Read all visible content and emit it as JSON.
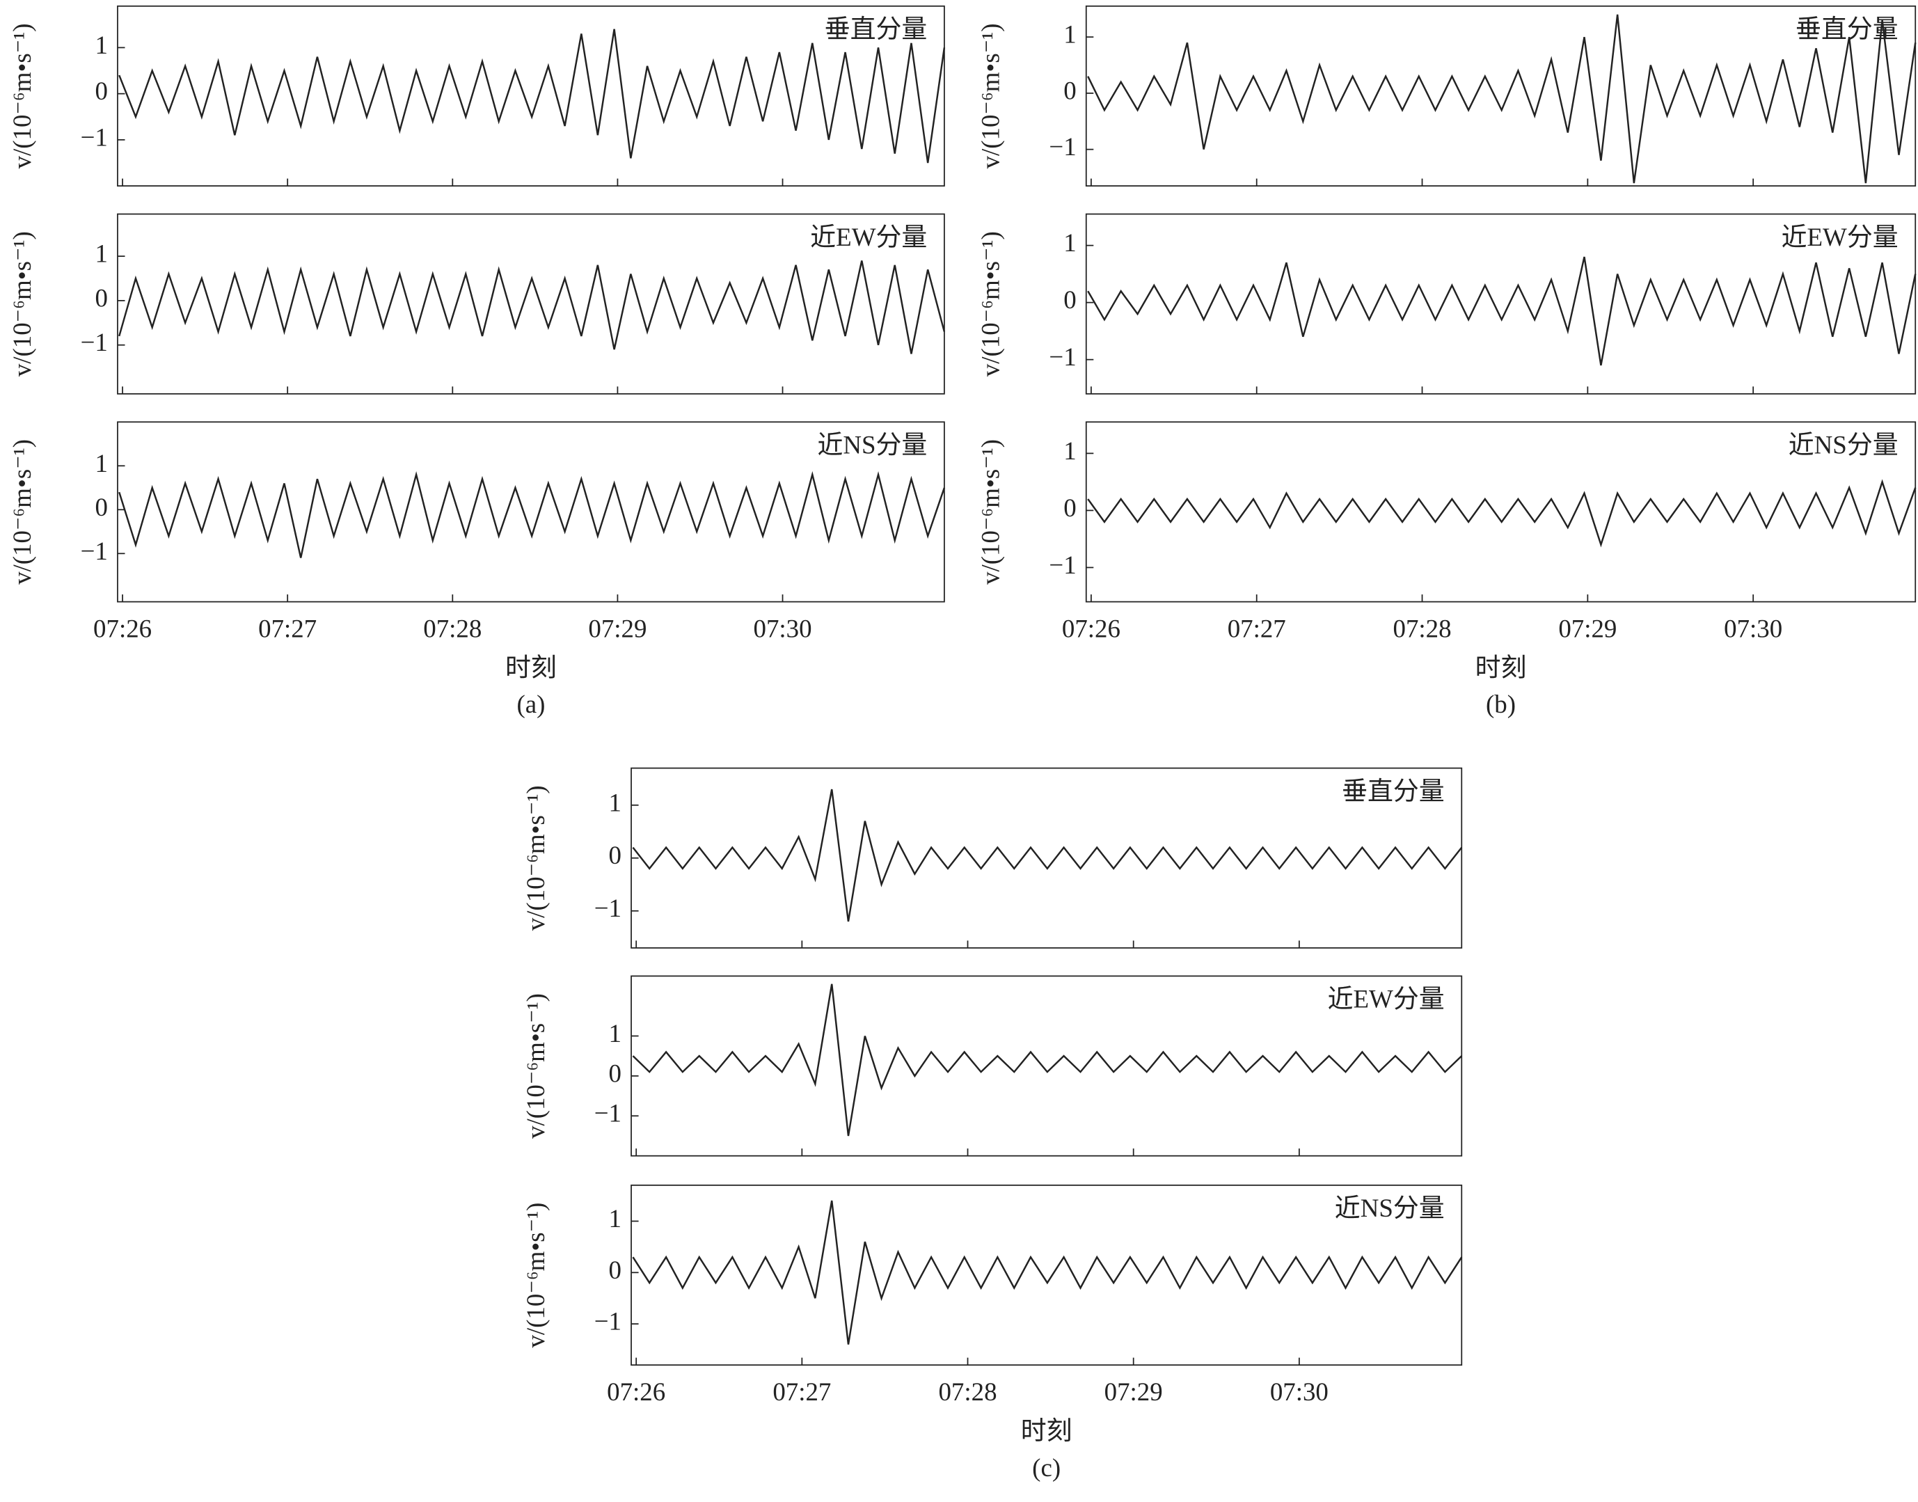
{
  "chart_data": [
    {
      "type": "line",
      "caption": "(a)",
      "xlabel": "时刻",
      "xlim": [
        -0.03,
        4.98
      ],
      "xticks": [
        {
          "value": 0,
          "label": "07:26"
        },
        {
          "value": 1,
          "label": "07:27"
        },
        {
          "value": 2,
          "label": "07:28"
        },
        {
          "value": 3,
          "label": "07:29"
        },
        {
          "value": 4,
          "label": "07:30"
        }
      ],
      "x": [
        -0.02,
        0.08,
        0.18,
        0.28,
        0.38,
        0.48,
        0.58,
        0.68,
        0.78,
        0.88,
        0.98,
        1.08,
        1.18,
        1.28,
        1.38,
        1.48,
        1.58,
        1.68,
        1.78,
        1.88,
        1.98,
        2.08,
        2.18,
        2.28,
        2.38,
        2.48,
        2.58,
        2.68,
        2.78,
        2.88,
        2.98,
        3.08,
        3.18,
        3.28,
        3.38,
        3.48,
        3.58,
        3.68,
        3.78,
        3.88,
        3.98,
        4.08,
        4.18,
        4.28,
        4.38,
        4.48,
        4.58,
        4.68,
        4.78,
        4.88,
        4.98
      ],
      "panels": [
        {
          "title": "垂直分量",
          "ylabel": "v/(10⁻⁶m•s⁻¹)",
          "ylim": [
            -2.0,
            1.9
          ],
          "yticks": [
            {
              "value": -1,
              "label": "−1"
            },
            0,
            1
          ],
          "color": "#222222",
          "values": [
            0.4,
            -0.5,
            0.5,
            -0.4,
            0.6,
            -0.5,
            0.7,
            -0.9,
            0.6,
            -0.6,
            0.5,
            -0.7,
            0.8,
            -0.6,
            0.7,
            -0.5,
            0.6,
            -0.8,
            0.5,
            -0.6,
            0.6,
            -0.5,
            0.7,
            -0.6,
            0.5,
            -0.5,
            0.6,
            -0.7,
            1.3,
            -0.9,
            1.4,
            -1.4,
            0.6,
            -0.6,
            0.5,
            -0.5,
            0.7,
            -0.7,
            0.8,
            -0.6,
            0.9,
            -0.8,
            1.1,
            -1.0,
            0.9,
            -1.2,
            1.0,
            -1.3,
            1.1,
            -1.5,
            1.0
          ]
        },
        {
          "title": "近EW分量",
          "ylabel": "v/(10⁻⁶m•s⁻¹)",
          "ylim": [
            -2.1,
            1.95
          ],
          "yticks": [
            {
              "value": -1,
              "label": "−1"
            },
            0,
            1
          ],
          "color": "#222222",
          "values": [
            -0.8,
            0.5,
            -0.6,
            0.6,
            -0.5,
            0.5,
            -0.7,
            0.6,
            -0.6,
            0.7,
            -0.7,
            0.7,
            -0.6,
            0.6,
            -0.8,
            0.7,
            -0.6,
            0.6,
            -0.7,
            0.6,
            -0.6,
            0.6,
            -0.8,
            0.7,
            -0.6,
            0.5,
            -0.6,
            0.5,
            -0.8,
            0.8,
            -1.1,
            0.6,
            -0.7,
            0.5,
            -0.6,
            0.5,
            -0.5,
            0.4,
            -0.5,
            0.5,
            -0.6,
            0.8,
            -0.9,
            0.7,
            -0.8,
            0.9,
            -1.0,
            0.8,
            -1.2,
            0.7,
            -0.7
          ]
        },
        {
          "title": "近NS分量",
          "ylabel": "v/(10⁻⁶m•s⁻¹)",
          "ylim": [
            -2.1,
            2.0
          ],
          "yticks": [
            {
              "value": -1,
              "label": "−1"
            },
            0,
            1
          ],
          "color": "#222222",
          "values": [
            0.4,
            -0.8,
            0.5,
            -0.6,
            0.6,
            -0.5,
            0.7,
            -0.6,
            0.6,
            -0.7,
            0.6,
            -1.1,
            0.7,
            -0.6,
            0.6,
            -0.5,
            0.7,
            -0.6,
            0.8,
            -0.7,
            0.6,
            -0.6,
            0.7,
            -0.6,
            0.5,
            -0.6,
            0.6,
            -0.5,
            0.7,
            -0.6,
            0.6,
            -0.7,
            0.6,
            -0.5,
            0.6,
            -0.5,
            0.6,
            -0.6,
            0.5,
            -0.6,
            0.6,
            -0.6,
            0.8,
            -0.7,
            0.7,
            -0.6,
            0.8,
            -0.7,
            0.7,
            -0.6,
            0.5
          ]
        }
      ]
    },
    {
      "type": "line",
      "caption": "(b)",
      "xlabel": "时刻",
      "xlim": [
        -0.03,
        4.98
      ],
      "xticks": [
        {
          "value": 0,
          "label": "07:26"
        },
        {
          "value": 1,
          "label": "07:27"
        },
        {
          "value": 2,
          "label": "07:28"
        },
        {
          "value": 3,
          "label": "07:29"
        },
        {
          "value": 4,
          "label": "07:30"
        }
      ],
      "x": [
        -0.02,
        0.08,
        0.18,
        0.28,
        0.38,
        0.48,
        0.58,
        0.68,
        0.78,
        0.88,
        0.98,
        1.08,
        1.18,
        1.28,
        1.38,
        1.48,
        1.58,
        1.68,
        1.78,
        1.88,
        1.98,
        2.08,
        2.18,
        2.28,
        2.38,
        2.48,
        2.58,
        2.68,
        2.78,
        2.88,
        2.98,
        3.08,
        3.18,
        3.28,
        3.38,
        3.48,
        3.58,
        3.68,
        3.78,
        3.88,
        3.98,
        4.08,
        4.18,
        4.28,
        4.38,
        4.48,
        4.58,
        4.68,
        4.78,
        4.88,
        4.98
      ],
      "panels": [
        {
          "title": "垂直分量",
          "ylabel": "v/(10⁻⁶m•s⁻¹)",
          "ylim": [
            -1.65,
            1.55
          ],
          "yticks": [
            {
              "value": -1,
              "label": "−1"
            },
            0,
            1
          ],
          "color": "#222222",
          "values": [
            0.3,
            -0.3,
            0.2,
            -0.3,
            0.3,
            -0.2,
            0.9,
            -1.0,
            0.3,
            -0.3,
            0.3,
            -0.3,
            0.4,
            -0.5,
            0.5,
            -0.3,
            0.3,
            -0.3,
            0.3,
            -0.3,
            0.3,
            -0.3,
            0.3,
            -0.3,
            0.3,
            -0.3,
            0.4,
            -0.4,
            0.6,
            -0.7,
            1.0,
            -1.2,
            1.4,
            -1.6,
            0.5,
            -0.4,
            0.4,
            -0.4,
            0.5,
            -0.4,
            0.5,
            -0.5,
            0.6,
            -0.6,
            0.8,
            -0.7,
            1.0,
            -1.6,
            1.3,
            -1.1,
            0.9
          ]
        },
        {
          "title": "近EW分量",
          "ylabel": "v/(10⁻⁶m•s⁻¹)",
          "ylim": [
            -1.6,
            1.55
          ],
          "yticks": [
            {
              "value": -1,
              "label": "−1"
            },
            0,
            1
          ],
          "color": "#222222",
          "values": [
            0.2,
            -0.3,
            0.2,
            -0.2,
            0.3,
            -0.2,
            0.3,
            -0.3,
            0.3,
            -0.3,
            0.3,
            -0.3,
            0.7,
            -0.6,
            0.4,
            -0.3,
            0.3,
            -0.3,
            0.3,
            -0.3,
            0.3,
            -0.3,
            0.3,
            -0.3,
            0.3,
            -0.3,
            0.3,
            -0.3,
            0.4,
            -0.5,
            0.8,
            -1.1,
            0.5,
            -0.4,
            0.4,
            -0.3,
            0.4,
            -0.3,
            0.4,
            -0.4,
            0.4,
            -0.4,
            0.5,
            -0.5,
            0.7,
            -0.6,
            0.6,
            -0.6,
            0.7,
            -0.9,
            0.5
          ]
        },
        {
          "title": "近NS分量",
          "ylabel": "v/(10⁻⁶m•s⁻¹)",
          "ylim": [
            -1.6,
            1.55
          ],
          "yticks": [
            {
              "value": -1,
              "label": "−1"
            },
            0,
            1
          ],
          "color": "#222222",
          "values": [
            0.2,
            -0.2,
            0.2,
            -0.2,
            0.2,
            -0.2,
            0.2,
            -0.2,
            0.2,
            -0.2,
            0.2,
            -0.3,
            0.3,
            -0.2,
            0.2,
            -0.2,
            0.2,
            -0.2,
            0.2,
            -0.2,
            0.2,
            -0.2,
            0.2,
            -0.2,
            0.2,
            -0.2,
            0.2,
            -0.2,
            0.2,
            -0.3,
            0.3,
            -0.6,
            0.3,
            -0.2,
            0.2,
            -0.2,
            0.2,
            -0.2,
            0.3,
            -0.2,
            0.3,
            -0.3,
            0.3,
            -0.3,
            0.3,
            -0.3,
            0.4,
            -0.4,
            0.5,
            -0.4,
            0.4
          ]
        }
      ]
    },
    {
      "type": "line",
      "caption": "(c)",
      "xlabel": "时刻",
      "xlim": [
        -0.03,
        4.98
      ],
      "xticks": [
        {
          "value": 0,
          "label": "07:26"
        },
        {
          "value": 1,
          "label": "07:27"
        },
        {
          "value": 2,
          "label": "07:28"
        },
        {
          "value": 3,
          "label": "07:29"
        },
        {
          "value": 4,
          "label": "07:30"
        }
      ],
      "x": [
        -0.02,
        0.08,
        0.18,
        0.28,
        0.38,
        0.48,
        0.58,
        0.68,
        0.78,
        0.88,
        0.98,
        1.08,
        1.18,
        1.28,
        1.38,
        1.48,
        1.58,
        1.68,
        1.78,
        1.88,
        1.98,
        2.08,
        2.18,
        2.28,
        2.38,
        2.48,
        2.58,
        2.68,
        2.78,
        2.88,
        2.98,
        3.08,
        3.18,
        3.28,
        3.38,
        3.48,
        3.58,
        3.68,
        3.78,
        3.88,
        3.98,
        4.08,
        4.18,
        4.28,
        4.38,
        4.48,
        4.58,
        4.68,
        4.78,
        4.88,
        4.98
      ],
      "panels": [
        {
          "title": "垂直分量",
          "ylabel": "v/(10⁻⁶m•s⁻¹)",
          "ylim": [
            -1.7,
            1.7
          ],
          "yticks": [
            {
              "value": -1,
              "label": "−1"
            },
            0,
            1
          ],
          "color": "#222222",
          "values": [
            0.2,
            -0.2,
            0.2,
            -0.2,
            0.2,
            -0.2,
            0.2,
            -0.2,
            0.2,
            -0.2,
            0.4,
            -0.4,
            1.3,
            -1.2,
            0.7,
            -0.5,
            0.3,
            -0.3,
            0.2,
            -0.2,
            0.2,
            -0.2,
            0.2,
            -0.2,
            0.2,
            -0.2,
            0.2,
            -0.2,
            0.2,
            -0.2,
            0.2,
            -0.2,
            0.2,
            -0.2,
            0.2,
            -0.2,
            0.2,
            -0.2,
            0.2,
            -0.2,
            0.2,
            -0.2,
            0.2,
            -0.2,
            0.2,
            -0.2,
            0.2,
            -0.2,
            0.2,
            -0.2,
            0.2
          ]
        },
        {
          "title": "近EW分量",
          "ylabel": "v/(10⁻⁶m•s⁻¹)",
          "ylim": [
            -2.0,
            2.5
          ],
          "yticks": [
            {
              "value": -1,
              "label": "−1"
            },
            0,
            1
          ],
          "color": "#222222",
          "values": [
            0.5,
            0.1,
            0.6,
            0.1,
            0.5,
            0.1,
            0.6,
            0.1,
            0.5,
            0.1,
            0.8,
            -0.2,
            2.3,
            -1.5,
            1.0,
            -0.3,
            0.7,
            0.0,
            0.6,
            0.1,
            0.6,
            0.1,
            0.5,
            0.1,
            0.6,
            0.1,
            0.5,
            0.1,
            0.6,
            0.1,
            0.5,
            0.1,
            0.6,
            0.1,
            0.5,
            0.1,
            0.6,
            0.1,
            0.5,
            0.1,
            0.6,
            0.1,
            0.5,
            0.1,
            0.6,
            0.1,
            0.5,
            0.1,
            0.6,
            0.1,
            0.5
          ]
        },
        {
          "title": "近NS分量",
          "ylabel": "v/(10⁻⁶m•s⁻¹)",
          "ylim": [
            -1.8,
            1.7
          ],
          "yticks": [
            {
              "value": -1,
              "label": "−1"
            },
            0,
            1
          ],
          "color": "#222222",
          "values": [
            0.3,
            -0.2,
            0.3,
            -0.3,
            0.3,
            -0.2,
            0.3,
            -0.3,
            0.3,
            -0.3,
            0.5,
            -0.5,
            1.4,
            -1.4,
            0.6,
            -0.5,
            0.4,
            -0.3,
            0.3,
            -0.3,
            0.3,
            -0.3,
            0.3,
            -0.3,
            0.3,
            -0.2,
            0.3,
            -0.3,
            0.3,
            -0.2,
            0.3,
            -0.2,
            0.3,
            -0.3,
            0.3,
            -0.2,
            0.3,
            -0.3,
            0.3,
            -0.2,
            0.3,
            -0.2,
            0.3,
            -0.3,
            0.3,
            -0.2,
            0.3,
            -0.3,
            0.3,
            -0.2,
            0.3
          ]
        }
      ]
    }
  ]
}
